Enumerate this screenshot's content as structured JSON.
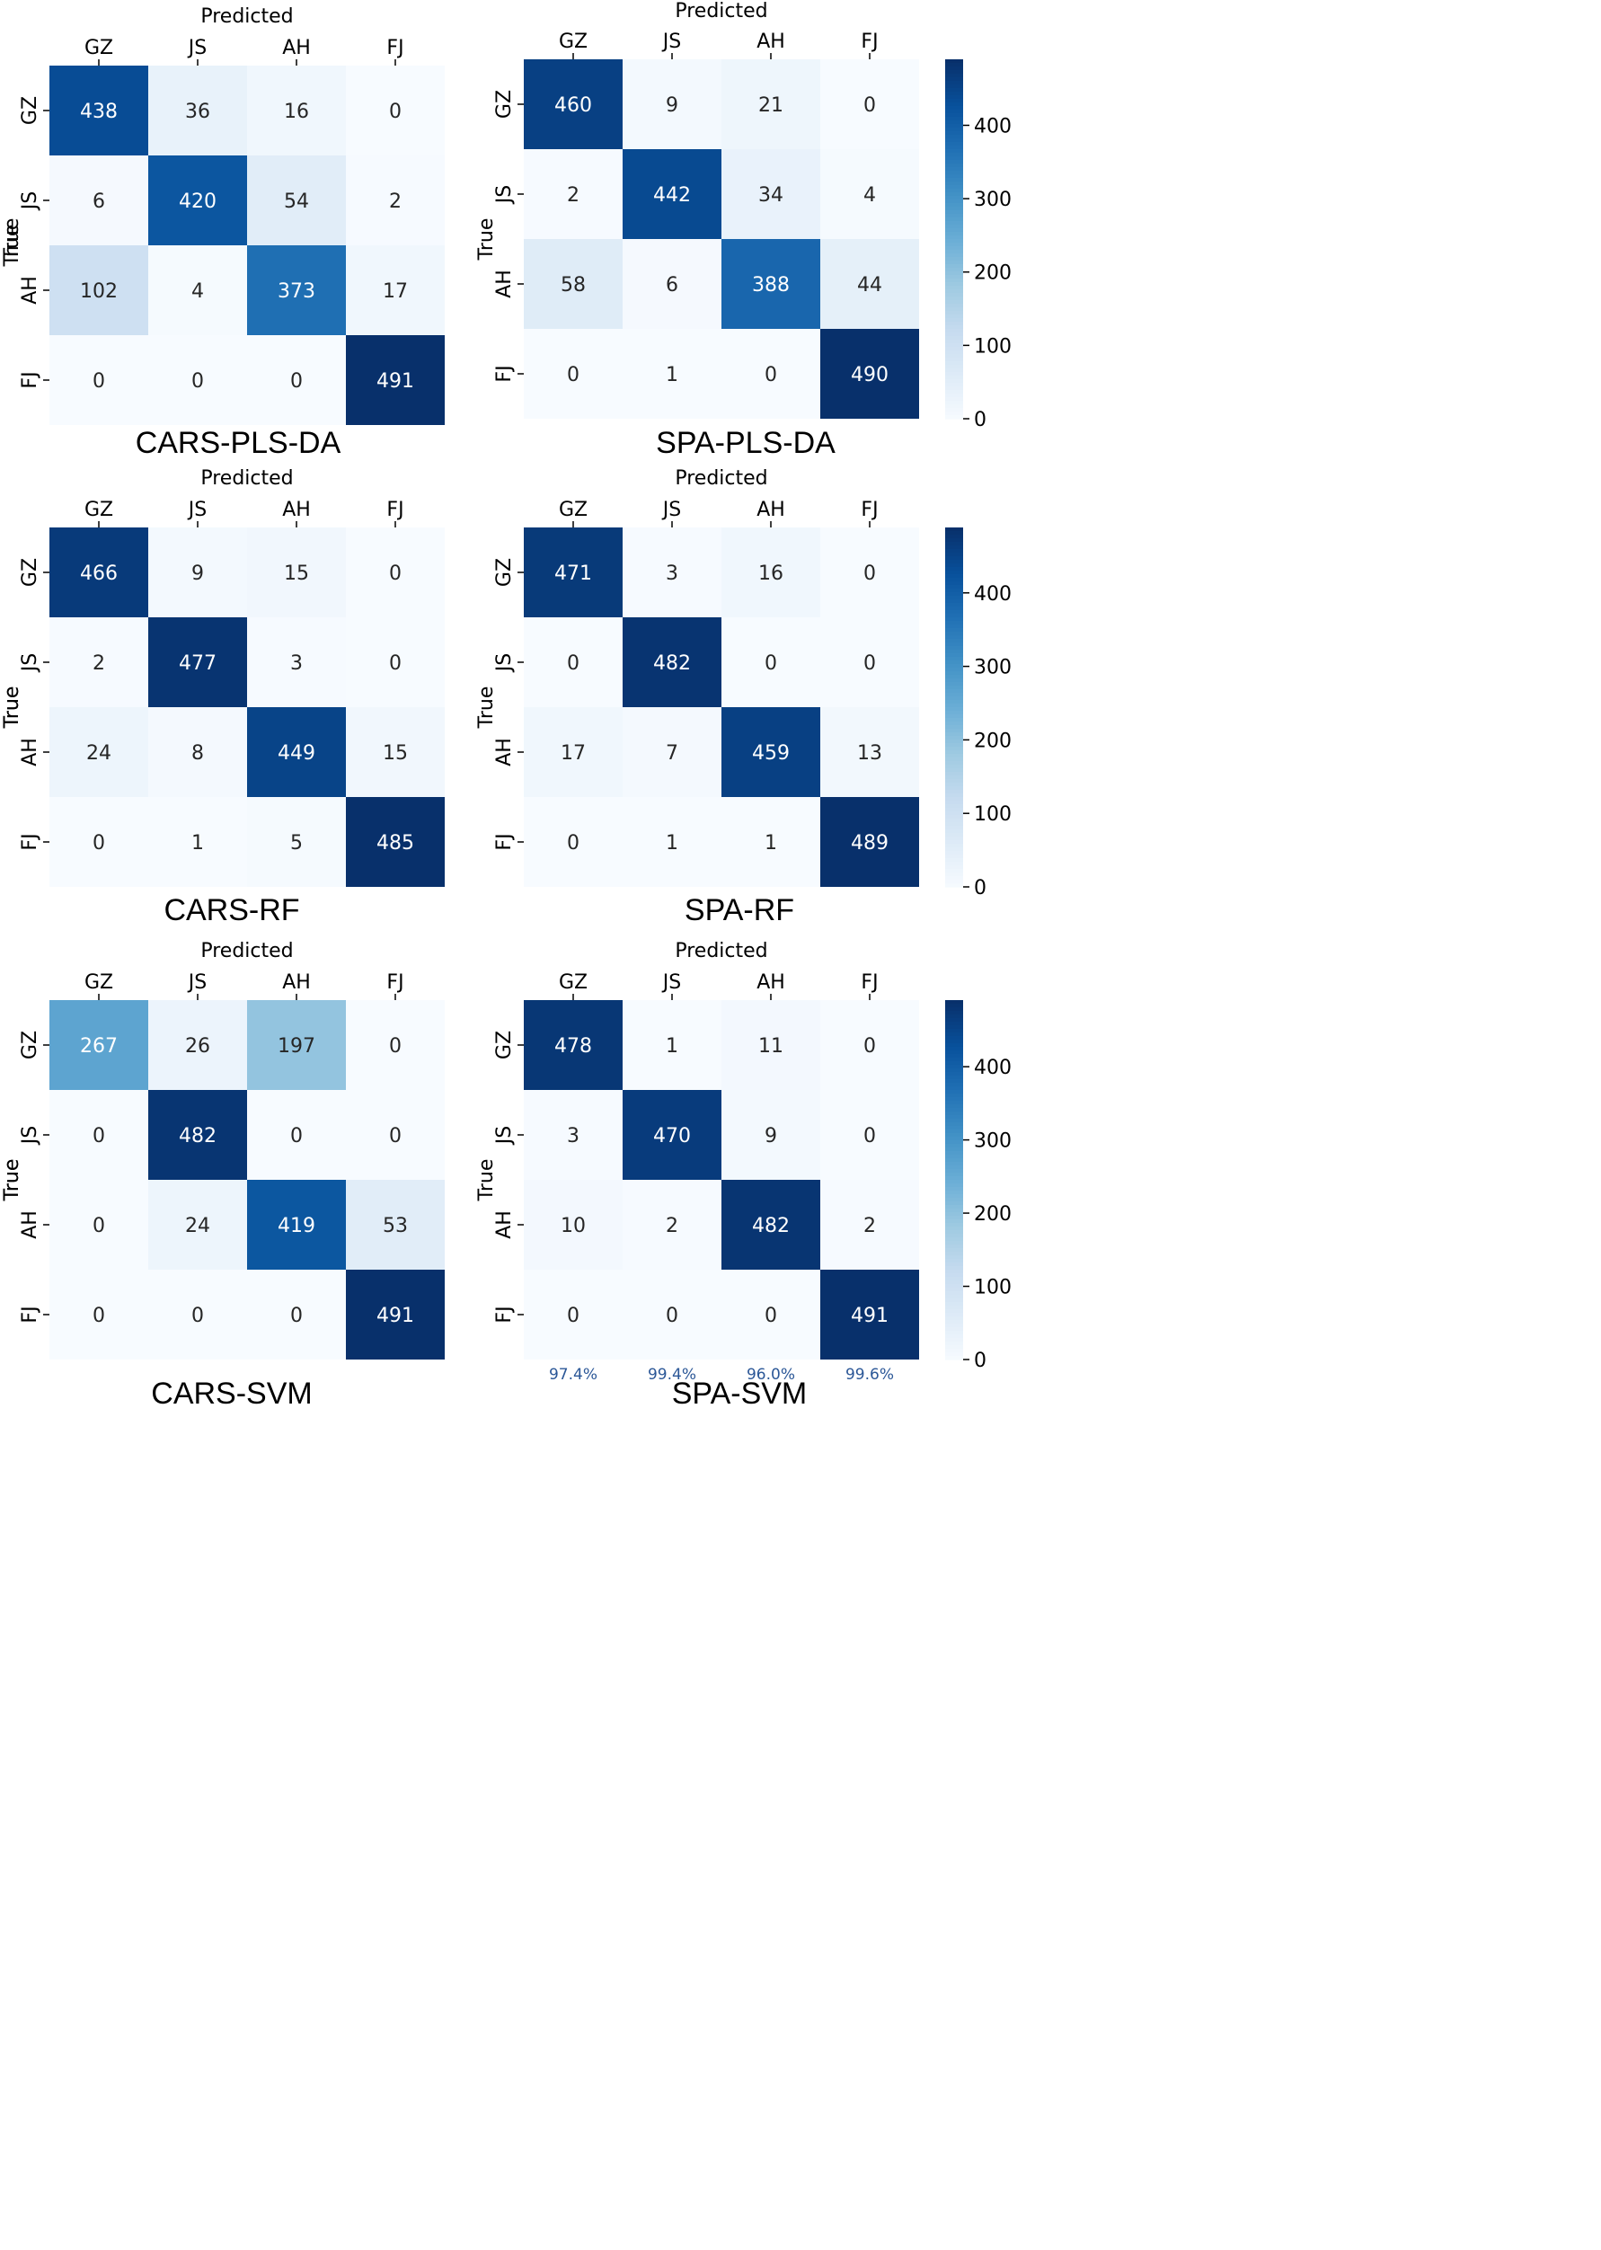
{
  "chart_data": [
    {
      "type": "heatmap",
      "title": "CARS-PLS-DA",
      "xlabel": "Predicted",
      "ylabel": "True",
      "categories": [
        "GZ",
        "JS",
        "AH",
        "FJ"
      ],
      "matrix": [
        [
          438,
          36,
          16,
          0
        ],
        [
          6,
          420,
          54,
          2
        ],
        [
          102,
          4,
          373,
          17
        ],
        [
          0,
          0,
          0,
          491
        ]
      ],
      "colormap": "Blues",
      "vmin": 0,
      "vmax": 491
    },
    {
      "type": "heatmap",
      "title": "SPA-PLS-DA",
      "xlabel": "Predicted",
      "ylabel": "True",
      "categories": [
        "GZ",
        "JS",
        "AH",
        "FJ"
      ],
      "matrix": [
        [
          460,
          9,
          21,
          0
        ],
        [
          2,
          442,
          34,
          4
        ],
        [
          58,
          6,
          388,
          44
        ],
        [
          0,
          1,
          0,
          490
        ]
      ],
      "colormap": "Blues",
      "vmin": 0,
      "vmax": 490,
      "colorbar_ticks": [
        "0",
        "100",
        "200",
        "300",
        "400"
      ]
    },
    {
      "type": "heatmap",
      "title": "CARS-RF",
      "xlabel": "Predicted",
      "ylabel": "True",
      "categories": [
        "GZ",
        "JS",
        "AH",
        "FJ"
      ],
      "matrix": [
        [
          466,
          9,
          15,
          0
        ],
        [
          2,
          477,
          3,
          0
        ],
        [
          24,
          8,
          449,
          15
        ],
        [
          0,
          1,
          5,
          485
        ]
      ],
      "colormap": "Blues",
      "vmin": 0,
      "vmax": 485
    },
    {
      "type": "heatmap",
      "title": "SPA-RF",
      "xlabel": "Predicted",
      "ylabel": "True",
      "categories": [
        "GZ",
        "JS",
        "AH",
        "FJ"
      ],
      "matrix": [
        [
          471,
          3,
          16,
          0
        ],
        [
          0,
          482,
          0,
          0
        ],
        [
          17,
          7,
          459,
          13
        ],
        [
          0,
          1,
          1,
          489
        ]
      ],
      "colormap": "Blues",
      "vmin": 0,
      "vmax": 489,
      "colorbar_ticks": [
        "0",
        "100",
        "200",
        "300",
        "400"
      ]
    },
    {
      "type": "heatmap",
      "title": "CARS-SVM",
      "xlabel": "Predicted",
      "ylabel": "True",
      "categories": [
        "GZ",
        "JS",
        "AH",
        "FJ"
      ],
      "matrix": [
        [
          267,
          26,
          197,
          0
        ],
        [
          0,
          482,
          0,
          0
        ],
        [
          0,
          24,
          419,
          53
        ],
        [
          0,
          0,
          0,
          491
        ]
      ],
      "colormap": "Blues",
      "vmin": 0,
      "vmax": 491
    },
    {
      "type": "heatmap",
      "title": "SPA-SVM",
      "xlabel": "Predicted",
      "ylabel": "True",
      "categories": [
        "GZ",
        "JS",
        "AH",
        "FJ"
      ],
      "matrix": [
        [
          478,
          1,
          11,
          0
        ],
        [
          3,
          470,
          9,
          0
        ],
        [
          10,
          2,
          482,
          2
        ],
        [
          0,
          0,
          0,
          491
        ]
      ],
      "colormap": "Blues",
      "vmin": 0,
      "vmax": 491,
      "colorbar_ticks": [
        "0",
        "100",
        "200",
        "300",
        "400"
      ],
      "column_annotations": [
        "97.4%",
        "99.4%",
        "96.0%",
        "99.6%"
      ]
    }
  ],
  "colors": {
    "text_on_dark": "#ffffff",
    "text_on_light": "#262626",
    "annotation": "#2b5797",
    "axis": "#000000"
  }
}
